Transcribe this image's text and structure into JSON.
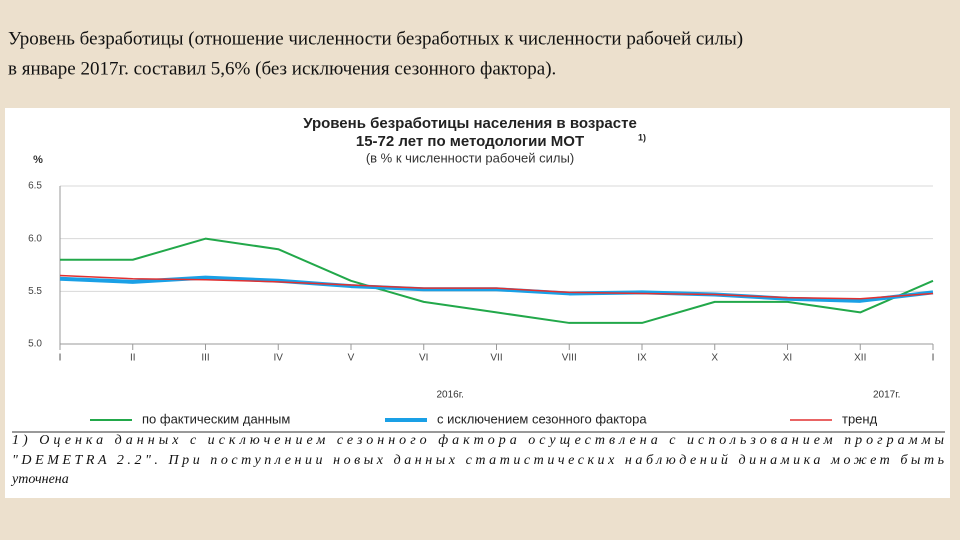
{
  "slide": {
    "heading": [
      "Уровень безработицы (отношение численности безработных к численности рабочей силы)",
      "в январе 2017г. составил 5,6% (без исключения сезонного фактора)."
    ]
  },
  "chart_data": {
    "type": "line",
    "title": [
      "Уровень безработицы населения в возрасте",
      "15-72 лет по методологии МОТ"
    ],
    "title_note": "1)",
    "subtitle": "(в % к численности рабочей силы)",
    "y_label": "%",
    "categories": [
      "I",
      "II",
      "III",
      "IV",
      "V",
      "VI",
      "VII",
      "VIII",
      "IX",
      "X",
      "XI",
      "XII",
      "I"
    ],
    "annotations": [
      {
        "text": "2016г.",
        "category": 6
      },
      {
        "text": "2017г.",
        "category": 12
      }
    ],
    "series": [
      {
        "name": "по фактическим данным",
        "color": "#22a84a",
        "width": 2,
        "values": [
          5.8,
          5.8,
          6.0,
          5.9,
          5.6,
          5.4,
          5.3,
          5.2,
          5.2,
          5.4,
          5.4,
          5.3,
          5.6
        ]
      },
      {
        "name": "с исключением сезонного фактора",
        "color": "#1aa0e6",
        "width": 4,
        "values": [
          5.62,
          5.59,
          5.63,
          5.6,
          5.55,
          5.52,
          5.52,
          5.48,
          5.49,
          5.47,
          5.43,
          5.41,
          5.49
        ]
      },
      {
        "name": "тренд",
        "color": "#e23030",
        "width": 1.5,
        "values": [
          5.65,
          5.62,
          5.61,
          5.59,
          5.56,
          5.53,
          5.53,
          5.49,
          5.48,
          5.47,
          5.44,
          5.43,
          5.48
        ]
      }
    ],
    "ylim": [
      5,
      6.5
    ],
    "yticks": [
      {
        "value": 5,
        "label": "5.0"
      },
      5.5,
      {
        "value": 6,
        "label": "6.0"
      },
      6.5
    ],
    "grid": true,
    "footnote": [
      "1) Оценка данных с исключением сезонного фактора осуществлена с использованием программы",
      "\"DEMETRA 2.2\". При поступлении новых данных статистических наблюдений динамика может быть",
      "уточнена"
    ]
  }
}
